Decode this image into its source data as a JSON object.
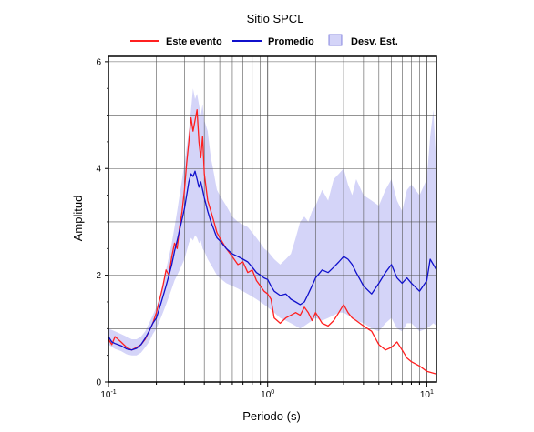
{
  "chart_data": {
    "type": "line",
    "title": "Sitio SPCL",
    "xlabel": "Periodo (s)",
    "ylabel": "Amplitud",
    "x_scale": "log",
    "xlim": [
      0.1,
      11.5
    ],
    "ylim": [
      0,
      6.1
    ],
    "grid": true,
    "legend_position": "top",
    "x_ticks": [
      {
        "value": 0.1,
        "base": "10",
        "exp": "-1"
      },
      {
        "value": 1,
        "label": "10",
        "exp": "0"
      },
      {
        "value": 10,
        "label": "10",
        "exp": "1"
      }
    ],
    "y_ticks": [
      0,
      2,
      4,
      6
    ],
    "legend": [
      {
        "label": "Este evento",
        "kind": "line",
        "color": "#ff2020"
      },
      {
        "label": "Promedio",
        "kind": "line",
        "color": "#1010cc"
      },
      {
        "label": "Desv. Est.",
        "kind": "band",
        "color": "#d4d4f8"
      }
    ],
    "series": [
      {
        "name": "Este evento",
        "color": "#ff2020",
        "x": [
          0.1,
          0.105,
          0.11,
          0.12,
          0.13,
          0.14,
          0.15,
          0.16,
          0.17,
          0.18,
          0.19,
          0.2,
          0.21,
          0.22,
          0.23,
          0.24,
          0.25,
          0.26,
          0.27,
          0.28,
          0.29,
          0.3,
          0.31,
          0.32,
          0.33,
          0.34,
          0.35,
          0.36,
          0.37,
          0.38,
          0.39,
          0.4,
          0.42,
          0.44,
          0.46,
          0.48,
          0.5,
          0.55,
          0.6,
          0.65,
          0.7,
          0.75,
          0.8,
          0.85,
          0.9,
          0.95,
          1.0,
          1.05,
          1.1,
          1.2,
          1.3,
          1.4,
          1.5,
          1.6,
          1.7,
          1.8,
          1.9,
          2.0,
          2.2,
          2.4,
          2.6,
          2.8,
          3.0,
          3.2,
          3.4,
          3.6,
          4.0,
          4.5,
          5.0,
          5.5,
          6.0,
          6.5,
          7.0,
          7.5,
          8.0,
          9.0,
          10.0,
          11.5
        ],
        "y": [
          0.8,
          0.7,
          0.85,
          0.75,
          0.65,
          0.6,
          0.65,
          0.7,
          0.8,
          0.95,
          1.1,
          1.3,
          1.55,
          1.8,
          2.1,
          2.0,
          2.35,
          2.6,
          2.5,
          2.9,
          3.2,
          3.6,
          4.1,
          4.5,
          4.95,
          4.7,
          4.9,
          5.1,
          4.5,
          4.2,
          4.6,
          3.9,
          3.4,
          3.2,
          3.0,
          2.8,
          2.7,
          2.5,
          2.35,
          2.2,
          2.25,
          2.05,
          2.1,
          1.9,
          1.8,
          1.7,
          1.65,
          1.55,
          1.2,
          1.1,
          1.2,
          1.25,
          1.3,
          1.25,
          1.4,
          1.3,
          1.15,
          1.3,
          1.1,
          1.05,
          1.15,
          1.3,
          1.45,
          1.3,
          1.2,
          1.15,
          1.05,
          0.95,
          0.7,
          0.6,
          0.65,
          0.75,
          0.6,
          0.45,
          0.38,
          0.3,
          0.2,
          0.15
        ]
      },
      {
        "name": "Promedio",
        "color": "#1010cc",
        "x": [
          0.1,
          0.105,
          0.11,
          0.12,
          0.13,
          0.14,
          0.15,
          0.16,
          0.17,
          0.18,
          0.19,
          0.2,
          0.21,
          0.22,
          0.23,
          0.24,
          0.25,
          0.26,
          0.27,
          0.28,
          0.29,
          0.3,
          0.31,
          0.32,
          0.33,
          0.34,
          0.35,
          0.36,
          0.37,
          0.38,
          0.39,
          0.4,
          0.42,
          0.44,
          0.46,
          0.48,
          0.5,
          0.55,
          0.6,
          0.65,
          0.7,
          0.75,
          0.8,
          0.85,
          0.9,
          0.95,
          1.0,
          1.05,
          1.1,
          1.2,
          1.3,
          1.4,
          1.5,
          1.6,
          1.7,
          1.8,
          1.9,
          2.0,
          2.2,
          2.4,
          2.6,
          2.8,
          3.0,
          3.2,
          3.4,
          3.6,
          4.0,
          4.5,
          5.0,
          5.5,
          6.0,
          6.5,
          7.0,
          7.5,
          8.0,
          9.0,
          10.0,
          10.5,
          11.5
        ],
        "y": [
          0.85,
          0.75,
          0.72,
          0.68,
          0.62,
          0.6,
          0.63,
          0.7,
          0.82,
          0.95,
          1.1,
          1.2,
          1.4,
          1.6,
          1.8,
          2.0,
          2.2,
          2.45,
          2.65,
          2.85,
          3.05,
          3.25,
          3.5,
          3.75,
          3.9,
          3.85,
          3.95,
          3.8,
          3.65,
          3.75,
          3.6,
          3.45,
          3.2,
          3.0,
          2.85,
          2.7,
          2.65,
          2.5,
          2.4,
          2.35,
          2.3,
          2.25,
          2.15,
          2.05,
          2.0,
          1.95,
          1.92,
          1.8,
          1.7,
          1.62,
          1.65,
          1.55,
          1.5,
          1.45,
          1.5,
          1.65,
          1.8,
          1.95,
          2.1,
          2.05,
          2.15,
          2.25,
          2.35,
          2.3,
          2.2,
          2.05,
          1.8,
          1.65,
          1.85,
          2.05,
          2.2,
          1.95,
          1.85,
          1.95,
          1.85,
          1.7,
          1.9,
          2.3,
          2.1
        ]
      }
    ],
    "band": {
      "name": "Desv. Est.",
      "color": "#d4d4f8",
      "x": [
        0.1,
        0.11,
        0.12,
        0.13,
        0.14,
        0.15,
        0.16,
        0.17,
        0.18,
        0.19,
        0.2,
        0.21,
        0.22,
        0.23,
        0.24,
        0.25,
        0.26,
        0.27,
        0.28,
        0.29,
        0.3,
        0.31,
        0.32,
        0.33,
        0.34,
        0.35,
        0.36,
        0.37,
        0.38,
        0.39,
        0.4,
        0.42,
        0.44,
        0.46,
        0.48,
        0.5,
        0.55,
        0.6,
        0.65,
        0.7,
        0.75,
        0.8,
        0.85,
        0.9,
        0.95,
        1.0,
        1.1,
        1.2,
        1.3,
        1.4,
        1.5,
        1.6,
        1.7,
        1.8,
        1.9,
        2.0,
        2.2,
        2.4,
        2.6,
        2.8,
        3.0,
        3.2,
        3.4,
        3.6,
        4.0,
        4.5,
        5.0,
        5.5,
        6.0,
        6.5,
        7.0,
        7.5,
        8.0,
        9.0,
        10.0,
        10.5,
        11.0,
        11.5
      ],
      "upper": [
        1.0,
        0.95,
        0.9,
        0.85,
        0.8,
        0.8,
        0.85,
        0.95,
        1.1,
        1.25,
        1.4,
        1.6,
        1.85,
        2.1,
        2.35,
        2.6,
        2.9,
        3.2,
        3.5,
        3.8,
        4.1,
        4.4,
        4.7,
        5.1,
        5.5,
        5.3,
        5.4,
        5.2,
        5.0,
        5.2,
        4.9,
        4.7,
        4.2,
        3.9,
        3.6,
        3.5,
        3.3,
        3.1,
        3.0,
        2.95,
        2.9,
        2.8,
        2.7,
        2.6,
        2.5,
        2.45,
        2.3,
        2.2,
        2.3,
        2.4,
        2.7,
        3.0,
        3.1,
        3.0,
        3.2,
        3.3,
        3.6,
        3.4,
        3.8,
        3.9,
        4.0,
        3.7,
        3.5,
        3.8,
        3.5,
        3.4,
        3.3,
        3.6,
        3.8,
        3.4,
        3.2,
        3.6,
        3.7,
        3.5,
        3.8,
        4.6,
        5.1,
        4.0
      ],
      "lower": [
        0.7,
        0.62,
        0.58,
        0.52,
        0.5,
        0.5,
        0.55,
        0.65,
        0.75,
        0.9,
        1.0,
        1.15,
        1.3,
        1.45,
        1.6,
        1.75,
        1.9,
        2.0,
        2.1,
        2.2,
        2.3,
        2.45,
        2.6,
        2.7,
        2.65,
        2.75,
        2.7,
        2.6,
        2.65,
        2.5,
        2.45,
        2.3,
        2.2,
        2.1,
        2.0,
        1.95,
        1.85,
        1.8,
        1.75,
        1.7,
        1.65,
        1.6,
        1.55,
        1.5,
        1.45,
        1.4,
        1.3,
        1.2,
        1.15,
        1.1,
        1.05,
        1.0,
        1.05,
        1.1,
        1.15,
        1.2,
        1.15,
        1.2,
        1.25,
        1.3,
        1.3,
        1.25,
        1.2,
        1.15,
        1.1,
        1.0,
        0.95,
        1.1,
        1.2,
        1.0,
        0.95,
        1.1,
        1.1,
        0.95,
        1.0,
        1.05,
        1.1,
        1.05
      ]
    }
  }
}
